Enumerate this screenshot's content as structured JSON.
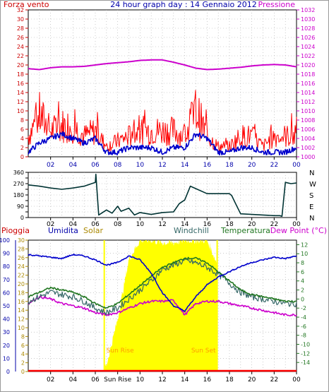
{
  "chart_data": [
    {
      "type": "line",
      "title": "24 hour graph day : 14 Gennaio 2012",
      "left_label": "Forza vento",
      "right_label": "Pressione",
      "colors": {
        "gust": "#ff0000",
        "wind": "#0000cc",
        "pressure": "#cc00cc",
        "left_axis": "#cc0000",
        "right_axis": "#cc00cc"
      },
      "x_ticks": [
        "02",
        "04",
        "06",
        "08",
        "10",
        "12",
        "14",
        "16",
        "18",
        "20",
        "22",
        "00"
      ],
      "left_ticks": [
        "0",
        "2",
        "4",
        "6",
        "8",
        "10",
        "12",
        "14",
        "16",
        "18",
        "20",
        "22",
        "24",
        "26",
        "28",
        "30",
        "32"
      ],
      "right_ticks": [
        "1000",
        "1002",
        "1004",
        "1006",
        "1008",
        "1010",
        "1012",
        "1014",
        "1016",
        "1018",
        "1020",
        "1022",
        "1024",
        "1026",
        "1028",
        "1030",
        "1032"
      ],
      "left_ylim": [
        0,
        32
      ],
      "right_ylim": [
        1000,
        1032
      ],
      "grid": "dotted",
      "x_hours": [
        0,
        1,
        2,
        3,
        4,
        5,
        6,
        7,
        8,
        9,
        10,
        11,
        12,
        13,
        14,
        15,
        16,
        17,
        18,
        19,
        20,
        21,
        22,
        23,
        24
      ],
      "series": [
        {
          "key": "gust",
          "values": [
            4,
            8,
            5,
            6,
            6,
            4,
            5,
            2,
            3,
            4,
            5,
            5,
            5,
            5,
            4,
            9,
            4,
            2,
            2,
            4,
            4,
            2,
            4,
            4,
            4
          ]
        },
        {
          "key": "wind",
          "values": [
            1,
            3,
            4,
            5,
            4,
            3,
            4,
            1,
            1,
            2,
            2,
            2,
            1,
            2,
            2,
            5,
            4,
            1,
            1,
            2,
            2,
            1,
            1,
            1,
            2
          ]
        },
        {
          "key": "pressure",
          "values": [
            1019.2,
            1019.0,
            1019.4,
            1019.6,
            1019.6,
            1019.7,
            1020.0,
            1020.3,
            1020.5,
            1020.7,
            1021.0,
            1021.1,
            1021.1,
            1020.6,
            1020.0,
            1019.3,
            1019.0,
            1019.1,
            1019.3,
            1019.5,
            1019.8,
            1020.0,
            1020.1,
            1020.0,
            1019.6
          ]
        }
      ]
    },
    {
      "type": "line",
      "x_ticks": [
        "02",
        "04",
        "06",
        "08",
        "10",
        "12",
        "14",
        "16",
        "18",
        "20",
        "22",
        "00"
      ],
      "left_ticks": [
        "0",
        "45",
        "90",
        "135",
        "180",
        "225",
        "270",
        "315",
        "360"
      ],
      "right_labels": [
        "N",
        "W",
        "S",
        "E",
        "N"
      ],
      "ylim": [
        0,
        360
      ],
      "colors": {
        "direction": "#003333"
      },
      "series": [
        {
          "key": "direction",
          "x_hours": [
            0,
            1,
            2,
            3,
            4,
            5,
            6,
            6.05,
            6.3,
            7,
            7.5,
            8,
            8.3,
            9,
            9.5,
            10,
            11,
            12,
            13,
            13.5,
            14,
            14.5,
            15,
            16,
            17,
            17.5,
            18,
            18.2,
            18.5,
            19,
            20,
            21,
            22,
            22.5,
            22.7,
            23,
            23.5,
            24
          ],
          "values": [
            260,
            250,
            235,
            225,
            235,
            250,
            280,
            345,
            20,
            60,
            35,
            90,
            50,
            75,
            20,
            40,
            25,
            40,
            45,
            110,
            140,
            250,
            230,
            190,
            190,
            190,
            190,
            175,
            120,
            30,
            25,
            20,
            15,
            15,
            10,
            280,
            270,
            275
          ]
        }
      ]
    },
    {
      "type": "line",
      "left_labels": [
        "Pioggia",
        "Umidita",
        "Solar",
        "Windchill",
        "Temperatura",
        "Dew Point (°C)"
      ],
      "x_ticks": [
        "02",
        "04",
        "06",
        "Sun Rise",
        "10",
        "12",
        "14",
        "16",
        "18",
        "20",
        "22",
        "00"
      ],
      "left_ticks": [
        "0",
        "10",
        "20",
        "30",
        "40",
        "50",
        "60",
        "70",
        "80",
        "90",
        "100"
      ],
      "left2_ticks": [
        "0",
        "2",
        "4",
        "6",
        "8",
        "10",
        "12",
        "14",
        "16",
        "18",
        "20",
        "22",
        "24",
        "26",
        "28",
        "30"
      ],
      "right_ticks": [
        "-14",
        "-12",
        "-10",
        "-8",
        "-6",
        "-4",
        "-2",
        "0",
        "2",
        "4",
        "6",
        "8",
        "10",
        "12"
      ],
      "annotations": [
        "Sun Rise",
        "Sun Set"
      ],
      "humidity_ylim": [
        0,
        100
      ],
      "temperature_ylim": [
        -16,
        13
      ],
      "colors": {
        "rain": "#ff0000",
        "humidity": "#0000cc",
        "solar": "#ffff00",
        "windchill": "#336666",
        "temperature": "#227722",
        "dewpoint": "#cc00cc",
        "sun": "#ff9900"
      },
      "x_hours": [
        0,
        1,
        2,
        3,
        4,
        5,
        6,
        7,
        8,
        9,
        10,
        11,
        12,
        13,
        14,
        15,
        16,
        17,
        18,
        19,
        20,
        21,
        22,
        23,
        24
      ],
      "series": [
        {
          "key": "humidity",
          "values": [
            89,
            88,
            87,
            86,
            89,
            88,
            85,
            81,
            83,
            88,
            85,
            75,
            60,
            50,
            46,
            57,
            66,
            72,
            76,
            80,
            83,
            85,
            87,
            86,
            88
          ]
        },
        {
          "key": "solar",
          "values": [
            0,
            0,
            0,
            0,
            0,
            0,
            0,
            5,
            40,
            85,
            100,
            100,
            98,
            98,
            100,
            100,
            100,
            80,
            0,
            0,
            0,
            0,
            0,
            0,
            0
          ]
        },
        {
          "key": "temperature",
          "values": [
            0.5,
            1.5,
            2.5,
            2.0,
            1.5,
            0.5,
            -1.0,
            -2.0,
            -1.0,
            1.0,
            3.0,
            5.0,
            7.0,
            8.0,
            9.0,
            9.0,
            8.0,
            6.0,
            4.0,
            2.0,
            1.0,
            0.5,
            0.0,
            -0.5,
            -0.5
          ]
        },
        {
          "key": "windchill",
          "values": [
            -0.5,
            0.5,
            1.5,
            1.0,
            0.5,
            -0.5,
            -2.0,
            -3.0,
            -2.0,
            0.0,
            2.0,
            4.0,
            6.5,
            7.5,
            8.5,
            8.0,
            7.0,
            5.5,
            3.5,
            1.5,
            0.5,
            0.0,
            -0.5,
            -1.0,
            -1.0
          ]
        },
        {
          "key": "dewpoint",
          "values": [
            -1.0,
            0.5,
            0.0,
            -1.0,
            -1.5,
            -2.0,
            -3.0,
            -3.5,
            -3.0,
            -2.0,
            -1.0,
            -0.5,
            -0.5,
            -0.3,
            -3.5,
            -1.0,
            -0.5,
            -0.5,
            -1.0,
            -1.5,
            -2.0,
            -2.5,
            -3.0,
            -3.5,
            -3.5
          ]
        },
        {
          "key": "rain",
          "values": [
            0,
            0,
            0,
            0,
            0,
            0,
            0,
            0,
            0,
            0,
            0,
            0,
            0,
            0,
            0,
            0,
            0,
            0,
            0,
            0,
            0,
            0,
            0,
            0,
            0
          ]
        }
      ]
    }
  ]
}
